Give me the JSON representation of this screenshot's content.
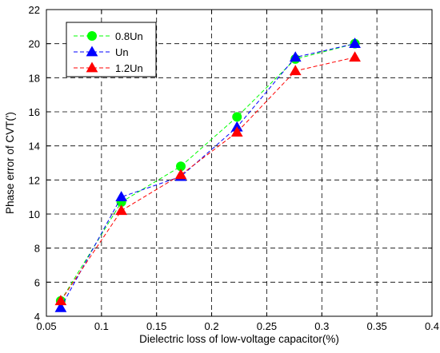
{
  "chart_data": {
    "type": "line",
    "xlabel": "Dielectric loss of low-voltage capacitor(%)",
    "ylabel": "Phase error of CVT(')",
    "xlim": [
      0.05,
      0.4
    ],
    "ylim": [
      4,
      22
    ],
    "xticks": [
      "0.05",
      "0.1",
      "0.15",
      "0.2",
      "0.25",
      "0.3",
      "0.35",
      "0.4"
    ],
    "yticks": [
      "4",
      "6",
      "8",
      "10",
      "12",
      "14",
      "16",
      "18",
      "20",
      "22"
    ],
    "grid": true,
    "legend_position": "top-left",
    "x": [
      0.063,
      0.118,
      0.172,
      0.223,
      0.276,
      0.33
    ],
    "series": [
      {
        "name": "0.8Un",
        "values": [
          4.9,
          10.7,
          12.8,
          15.7,
          19.1,
          20.0
        ],
        "color": "#00ff00",
        "marker": "circle"
      },
      {
        "name": "Un",
        "values": [
          4.5,
          11.0,
          12.2,
          15.1,
          19.2,
          20.0
        ],
        "color": "#0000ff",
        "marker": "triangle"
      },
      {
        "name": "1.2Un",
        "values": [
          4.9,
          10.2,
          12.3,
          14.8,
          18.4,
          19.2
        ],
        "color": "#ff0000",
        "marker": "triangle"
      }
    ]
  }
}
